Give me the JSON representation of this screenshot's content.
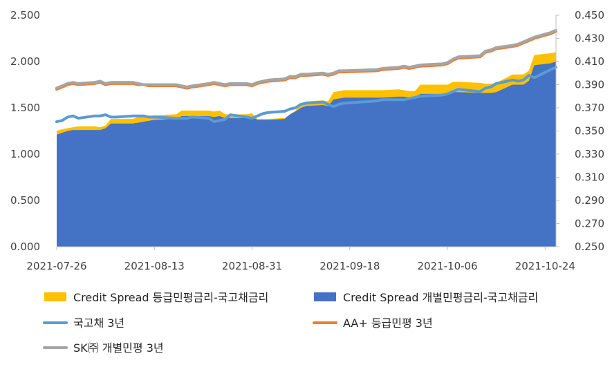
{
  "chart_data": {
    "type": "area",
    "x": [
      "2021-07-26",
      "2021-07-27",
      "2021-07-28",
      "2021-07-29",
      "2021-07-30",
      "2021-08-02",
      "2021-08-03",
      "2021-08-04",
      "2021-08-05",
      "2021-08-06",
      "2021-08-09",
      "2021-08-10",
      "2021-08-11",
      "2021-08-12",
      "2021-08-13",
      "2021-08-17",
      "2021-08-18",
      "2021-08-19",
      "2021-08-20",
      "2021-08-23",
      "2021-08-24",
      "2021-08-25",
      "2021-08-26",
      "2021-08-27",
      "2021-08-30",
      "2021-08-31",
      "2021-09-01",
      "2021-09-02",
      "2021-09-03",
      "2021-09-06",
      "2021-09-07",
      "2021-09-08",
      "2021-09-09",
      "2021-09-10",
      "2021-09-13",
      "2021-09-14",
      "2021-09-15",
      "2021-09-16",
      "2021-09-17",
      "2021-09-23",
      "2021-09-24",
      "2021-09-27",
      "2021-09-28",
      "2021-09-29",
      "2021-09-30",
      "2021-10-01",
      "2021-10-05",
      "2021-10-06",
      "2021-10-07",
      "2021-10-08",
      "2021-10-12",
      "2021-10-13",
      "2021-10-14",
      "2021-10-15",
      "2021-10-18",
      "2021-10-19",
      "2021-10-20",
      "2021-10-21",
      "2021-10-22",
      "2021-10-25",
      "2021-10-26"
    ],
    "x_ticks": [
      "2021-07-26",
      "2021-08-13",
      "2021-08-31",
      "2021-09-18",
      "2021-10-06",
      "2021-10-24"
    ],
    "y_left": {
      "range": [
        0,
        2.5
      ],
      "ticks": [
        "0.000",
        "0.500",
        "1.000",
        "1.500",
        "2.000",
        "2.500"
      ]
    },
    "y_right": {
      "range": [
        0.25,
        0.45
      ],
      "ticks": [
        "0.250",
        "0.270",
        "0.290",
        "0.310",
        "0.330",
        "0.350",
        "0.370",
        "0.390",
        "0.410",
        "0.430",
        "0.450"
      ]
    },
    "grid": false,
    "legend_position": "bottom",
    "series": [
      {
        "name": "Credit Spread 등급민평금리-국고채금리",
        "kind": "area",
        "axis": "left",
        "color": "#FFC000",
        "values": [
          1.25,
          1.27,
          1.28,
          1.29,
          1.3,
          1.3,
          1.29,
          1.31,
          1.38,
          1.38,
          1.38,
          1.4,
          1.4,
          1.41,
          1.42,
          1.43,
          1.47,
          1.47,
          1.47,
          1.47,
          1.46,
          1.47,
          1.43,
          1.43,
          1.43,
          1.44,
          1.38,
          1.38,
          1.38,
          1.39,
          1.43,
          1.47,
          1.55,
          1.57,
          1.58,
          1.57,
          1.67,
          1.68,
          1.69,
          1.69,
          1.69,
          1.7,
          1.69,
          1.68,
          1.68,
          1.75,
          1.75,
          1.75,
          1.78,
          1.78,
          1.77,
          1.76,
          1.76,
          1.77,
          1.86,
          1.86,
          1.86,
          1.9,
          2.07,
          2.09,
          2.1
        ]
      },
      {
        "name": "Credit Spread 개별민평금리-국고채금리",
        "kind": "area",
        "axis": "left",
        "color": "#4472C4",
        "values": [
          1.21,
          1.23,
          1.25,
          1.26,
          1.26,
          1.26,
          1.26,
          1.28,
          1.33,
          1.33,
          1.33,
          1.34,
          1.35,
          1.36,
          1.37,
          1.38,
          1.41,
          1.41,
          1.41,
          1.41,
          1.4,
          1.41,
          1.39,
          1.39,
          1.39,
          1.4,
          1.37,
          1.37,
          1.37,
          1.38,
          1.43,
          1.46,
          1.5,
          1.52,
          1.53,
          1.52,
          1.59,
          1.6,
          1.61,
          1.61,
          1.61,
          1.62,
          1.62,
          1.61,
          1.61,
          1.65,
          1.65,
          1.65,
          1.67,
          1.67,
          1.66,
          1.66,
          1.66,
          1.67,
          1.75,
          1.75,
          1.75,
          1.79,
          1.96,
          1.98,
          2.0
        ]
      },
      {
        "name": "국고채 3년",
        "kind": "line",
        "axis": "right",
        "color": "#5B9BD5",
        "values": [
          0.358,
          0.359,
          0.362,
          0.363,
          0.361,
          0.363,
          0.363,
          0.364,
          0.362,
          0.362,
          0.363,
          0.363,
          0.363,
          0.362,
          0.362,
          0.361,
          0.361,
          0.361,
          0.362,
          0.361,
          0.358,
          0.359,
          0.36,
          0.364,
          0.362,
          0.361,
          0.363,
          0.365,
          0.366,
          0.367,
          0.369,
          0.37,
          0.373,
          0.374,
          0.375,
          0.373,
          0.371,
          0.373,
          0.374,
          0.376,
          0.377,
          0.377,
          0.377,
          0.378,
          0.379,
          0.38,
          0.381,
          0.382,
          0.384,
          0.386,
          0.384,
          0.387,
          0.388,
          0.391,
          0.394,
          0.393,
          0.394,
          0.398,
          0.396,
          0.403,
          0.405
        ]
      },
      {
        "name": "AA+ 등급민평 3년",
        "kind": "line",
        "axis": "right",
        "color": "#ED7D31",
        "values": [
          0.386,
          0.388,
          0.39,
          0.391,
          0.39,
          0.391,
          0.392,
          0.39,
          0.391,
          0.391,
          0.391,
          0.39,
          0.39,
          0.389,
          0.389,
          0.389,
          0.388,
          0.387,
          0.388,
          0.39,
          0.391,
          0.39,
          0.389,
          0.39,
          0.39,
          0.389,
          0.391,
          0.392,
          0.393,
          0.394,
          0.396,
          0.396,
          0.398,
          0.398,
          0.399,
          0.398,
          0.399,
          0.401,
          0.401,
          0.402,
          0.403,
          0.404,
          0.405,
          0.404,
          0.405,
          0.406,
          0.407,
          0.408,
          0.411,
          0.413,
          0.414,
          0.418,
          0.419,
          0.421,
          0.423,
          0.424,
          0.426,
          0.428,
          0.43,
          0.434,
          0.436
        ]
      },
      {
        "name": "SK㈜ 개별민평 3년",
        "kind": "line",
        "axis": "right",
        "color": "#A5A5A5",
        "values": [
          0.387,
          0.389,
          0.391,
          0.392,
          0.391,
          0.392,
          0.393,
          0.391,
          0.392,
          0.392,
          0.392,
          0.391,
          0.39,
          0.39,
          0.39,
          0.39,
          0.389,
          0.388,
          0.389,
          0.391,
          0.392,
          0.391,
          0.39,
          0.391,
          0.391,
          0.39,
          0.392,
          0.393,
          0.394,
          0.395,
          0.397,
          0.397,
          0.399,
          0.399,
          0.4,
          0.399,
          0.4,
          0.402,
          0.402,
          0.403,
          0.404,
          0.405,
          0.406,
          0.405,
          0.406,
          0.407,
          0.408,
          0.409,
          0.412,
          0.414,
          0.415,
          0.419,
          0.42,
          0.422,
          0.424,
          0.425,
          0.427,
          0.429,
          0.431,
          0.435,
          0.437
        ]
      }
    ]
  }
}
